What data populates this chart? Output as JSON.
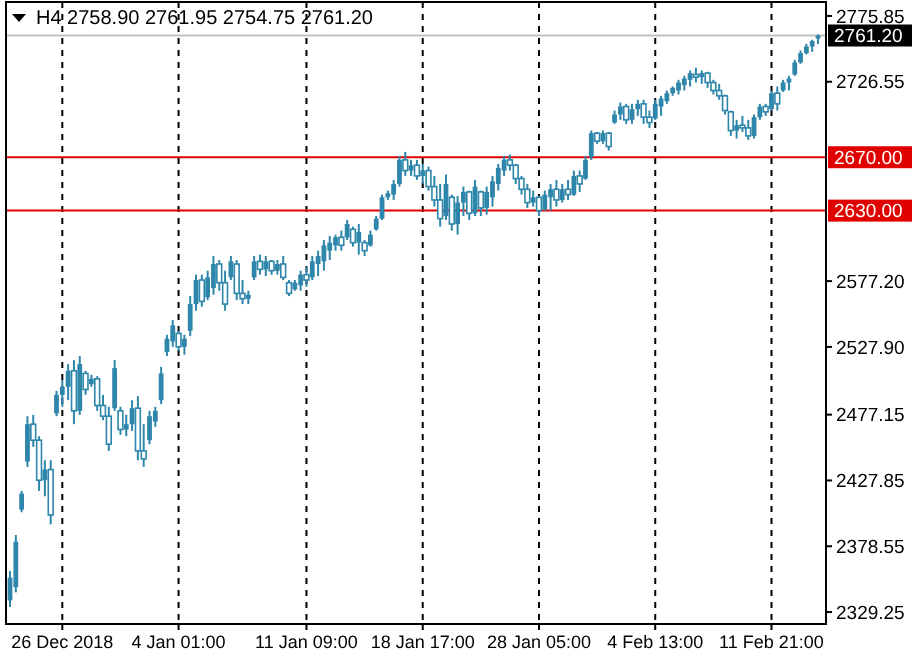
{
  "chart_data": {
    "type": "candlestick",
    "title": "H4  2758.90 2761.95 2754.75 2761.20",
    "color": "#2e86ab",
    "grid": "x",
    "line_style": "dashed",
    "categories": [
      null,
      null,
      null,
      null,
      null,
      null,
      null,
      null,
      null,
      "26 Dec 2018",
      null,
      null,
      null,
      null,
      null,
      null,
      null,
      null,
      null,
      null,
      null,
      null,
      null,
      null,
      null,
      null,
      null,
      null,
      null,
      "4 Jan 01:00",
      null,
      null,
      null,
      null,
      null,
      null,
      null,
      null,
      null,
      null,
      null,
      null,
      null,
      null,
      null,
      null,
      null,
      null,
      null,
      null,
      null,
      "11 Jan 09:00",
      null,
      null,
      null,
      null,
      null,
      null,
      null,
      null,
      null,
      null,
      null,
      null,
      null,
      null,
      null,
      null,
      null,
      null,
      null,
      "18 Jan 17:00",
      null,
      null,
      null,
      null,
      null,
      null,
      null,
      null,
      null,
      null,
      null,
      null,
      null,
      null,
      null,
      null,
      null,
      null,
      null,
      "28 Jan 05:00",
      null,
      null,
      null,
      null,
      null,
      null,
      null,
      null,
      null,
      null,
      null,
      null,
      null,
      null,
      null,
      null,
      null,
      null,
      null,
      "4 Feb 13:00",
      null,
      null,
      null,
      null,
      null,
      null,
      null,
      null,
      null,
      null,
      null,
      null,
      null,
      null,
      null,
      null,
      null,
      null,
      null,
      "11 Feb 21:00",
      null,
      null,
      null,
      null,
      null,
      null,
      null,
      null
    ],
    "ohlc": [
      [
        2338,
        2360,
        2333,
        2355
      ],
      [
        2348,
        2387,
        2344,
        2382
      ],
      [
        2406,
        2420,
        2404,
        2418
      ],
      [
        2442,
        2476,
        2438,
        2470
      ],
      [
        2470,
        2477,
        2453,
        2458
      ],
      [
        2458,
        2461,
        2420,
        2428
      ],
      [
        2428,
        2443,
        2416,
        2436
      ],
      [
        2436,
        2443,
        2395,
        2402
      ],
      [
        2478,
        2495,
        2476,
        2492
      ],
      [
        2492,
        2503,
        2483,
        2498
      ],
      [
        2498,
        2515,
        2488,
        2510
      ],
      [
        2510,
        2518,
        2470,
        2480
      ],
      [
        2480,
        2521,
        2477,
        2515
      ],
      [
        2508,
        2510,
        2492,
        2496
      ],
      [
        2500,
        2507,
        2498,
        2504
      ],
      [
        2504,
        2506,
        2480,
        2484
      ],
      [
        2484,
        2492,
        2473,
        2476
      ],
      [
        2476,
        2483,
        2450,
        2455
      ],
      [
        2482,
        2518,
        2480,
        2512
      ],
      [
        2480,
        2483,
        2462,
        2466
      ],
      [
        2466,
        2477,
        2461,
        2470
      ],
      [
        2470,
        2488,
        2465,
        2482
      ],
      [
        2482,
        2491,
        2443,
        2450
      ],
      [
        2450,
        2470,
        2438,
        2444
      ],
      [
        2458,
        2480,
        2455,
        2476
      ],
      [
        2472,
        2483,
        2468,
        2480
      ],
      [
        2488,
        2513,
        2485,
        2508
      ],
      [
        2524,
        2537,
        2521,
        2534
      ],
      [
        2532,
        2548,
        2528,
        2544
      ],
      [
        2538,
        2540,
        2525,
        2528
      ],
      [
        2528,
        2537,
        2522,
        2534
      ],
      [
        2540,
        2566,
        2536,
        2560
      ],
      [
        2560,
        2582,
        2555,
        2578
      ],
      [
        2578,
        2582,
        2558,
        2562
      ],
      [
        2565,
        2585,
        2563,
        2580
      ],
      [
        2572,
        2596,
        2567,
        2590
      ],
      [
        2590,
        2593,
        2570,
        2576
      ],
      [
        2576,
        2585,
        2555,
        2560
      ],
      [
        2580,
        2596,
        2578,
        2592
      ],
      [
        2590,
        2593,
        2563,
        2568
      ],
      [
        2568,
        2578,
        2560,
        2564
      ],
      [
        2564,
        2570,
        2560,
        2567
      ],
      [
        2580,
        2596,
        2578,
        2592
      ],
      [
        2592,
        2597,
        2582,
        2586
      ],
      [
        2586,
        2596,
        2581,
        2592
      ],
      [
        2592,
        2593,
        2582,
        2585
      ],
      [
        2585,
        2593,
        2582,
        2590
      ],
      [
        2590,
        2596,
        2578,
        2580
      ],
      [
        2576,
        2578,
        2566,
        2568
      ],
      [
        2571,
        2578,
        2570,
        2576
      ],
      [
        2574,
        2585,
        2570,
        2582
      ],
      [
        2582,
        2588,
        2573,
        2578
      ],
      [
        2580,
        2596,
        2578,
        2592
      ],
      [
        2590,
        2600,
        2581,
        2596
      ],
      [
        2592,
        2608,
        2585,
        2604
      ],
      [
        2600,
        2611,
        2593,
        2606
      ],
      [
        2604,
        2612,
        2600,
        2610
      ],
      [
        2610,
        2615,
        2600,
        2604
      ],
      [
        2610,
        2623,
        2608,
        2620
      ],
      [
        2616,
        2618,
        2603,
        2606
      ],
      [
        2606,
        2620,
        2597,
        2614
      ],
      [
        2606,
        2608,
        2596,
        2600
      ],
      [
        2604,
        2615,
        2603,
        2612
      ],
      [
        2616,
        2626,
        2615,
        2624
      ],
      [
        2624,
        2642,
        2623,
        2640
      ],
      [
        2640,
        2645,
        2638,
        2643
      ],
      [
        2642,
        2653,
        2638,
        2650
      ],
      [
        2650,
        2671,
        2648,
        2668
      ],
      [
        2668,
        2674,
        2656,
        2660
      ],
      [
        2660,
        2668,
        2656,
        2664
      ],
      [
        2664,
        2668,
        2653,
        2656
      ],
      [
        2656,
        2665,
        2650,
        2660
      ],
      [
        2660,
        2663,
        2645,
        2648
      ],
      [
        2648,
        2656,
        2633,
        2638
      ],
      [
        2638,
        2650,
        2618,
        2624
      ],
      [
        2626,
        2657,
        2623,
        2650
      ],
      [
        2640,
        2642,
        2615,
        2620
      ],
      [
        2620,
        2641,
        2612,
        2636
      ],
      [
        2636,
        2648,
        2626,
        2644
      ],
      [
        2644,
        2645,
        2623,
        2628
      ],
      [
        2628,
        2653,
        2626,
        2648
      ],
      [
        2644,
        2645,
        2626,
        2632
      ],
      [
        2632,
        2648,
        2627,
        2644
      ],
      [
        2640,
        2656,
        2633,
        2652
      ],
      [
        2650,
        2665,
        2645,
        2662
      ],
      [
        2660,
        2671,
        2656,
        2668
      ],
      [
        2668,
        2672,
        2660,
        2664
      ],
      [
        2664,
        2665,
        2650,
        2654
      ],
      [
        2654,
        2656,
        2642,
        2646
      ],
      [
        2646,
        2650,
        2632,
        2636
      ],
      [
        2636,
        2645,
        2633,
        2640
      ],
      [
        2640,
        2641,
        2626,
        2630
      ],
      [
        2631,
        2645,
        2630,
        2642
      ],
      [
        2640,
        2650,
        2630,
        2646
      ],
      [
        2646,
        2653,
        2633,
        2638
      ],
      [
        2638,
        2650,
        2636,
        2646
      ],
      [
        2646,
        2653,
        2638,
        2642
      ],
      [
        2642,
        2660,
        2641,
        2656
      ],
      [
        2656,
        2660,
        2644,
        2650
      ],
      [
        2654,
        2671,
        2653,
        2668
      ],
      [
        2670,
        2690,
        2668,
        2688
      ],
      [
        2688,
        2689,
        2680,
        2682
      ],
      [
        2682,
        2690,
        2680,
        2688
      ],
      [
        2688,
        2689,
        2675,
        2678
      ],
      [
        2696,
        2705,
        2695,
        2702
      ],
      [
        2702,
        2711,
        2698,
        2708
      ],
      [
        2708,
        2710,
        2695,
        2698
      ],
      [
        2698,
        2710,
        2695,
        2706
      ],
      [
        2706,
        2713,
        2701,
        2710
      ],
      [
        2710,
        2713,
        2695,
        2700
      ],
      [
        2700,
        2705,
        2692,
        2696
      ],
      [
        2699,
        2713,
        2698,
        2710
      ],
      [
        2708,
        2716,
        2701,
        2714
      ],
      [
        2712,
        2720,
        2710,
        2718
      ],
      [
        2718,
        2723,
        2716,
        2722
      ],
      [
        2720,
        2728,
        2717,
        2726
      ],
      [
        2724,
        2731,
        2720,
        2729
      ],
      [
        2728,
        2735,
        2723,
        2733
      ],
      [
        2732,
        2737,
        2726,
        2730
      ],
      [
        2730,
        2735,
        2725,
        2733
      ],
      [
        2733,
        2734,
        2722,
        2726
      ],
      [
        2726,
        2728,
        2717,
        2720
      ],
      [
        2720,
        2725,
        2713,
        2716
      ],
      [
        2716,
        2717,
        2702,
        2705
      ],
      [
        2704,
        2705,
        2686,
        2690
      ],
      [
        2690,
        2698,
        2684,
        2694
      ],
      [
        2694,
        2701,
        2689,
        2692
      ],
      [
        2692,
        2698,
        2683,
        2686
      ],
      [
        2686,
        2702,
        2684,
        2700
      ],
      [
        2700,
        2710,
        2698,
        2708
      ],
      [
        2708,
        2710,
        2701,
        2704
      ],
      [
        2706,
        2720,
        2705,
        2718
      ],
      [
        2718,
        2723,
        2705,
        2710
      ],
      [
        2720,
        2728,
        2719,
        2726
      ],
      [
        2726,
        2731,
        2720,
        2729
      ],
      [
        2732,
        2743,
        2731,
        2741
      ],
      [
        2741,
        2750,
        2740,
        2748
      ],
      [
        2748,
        2755,
        2747,
        2753
      ],
      [
        2753,
        2758,
        2749,
        2757
      ],
      [
        2758.9,
        2761.95,
        2754.75,
        2761.2
      ]
    ],
    "ylim": [
      2320.3,
      2786.3
    ],
    "yticks": [
      2329.25,
      2378.55,
      2427.85,
      2477.15,
      {
        "value": 2527.9,
        "label": "2527.90"
      },
      {
        "value": 2577.2,
        "label": "2577.20"
      },
      2726.55,
      2775.85
    ],
    "ref_lines": [
      {
        "axis": "y",
        "value": 2670,
        "label": "2670.00",
        "color": "#e00000"
      },
      {
        "axis": "y",
        "value": 2630,
        "label": "2630.00",
        "color": "#e00000"
      },
      {
        "axis": "y",
        "value": 2761.2,
        "label": "2761.20",
        "color": "#c0c0c0"
      }
    ]
  }
}
